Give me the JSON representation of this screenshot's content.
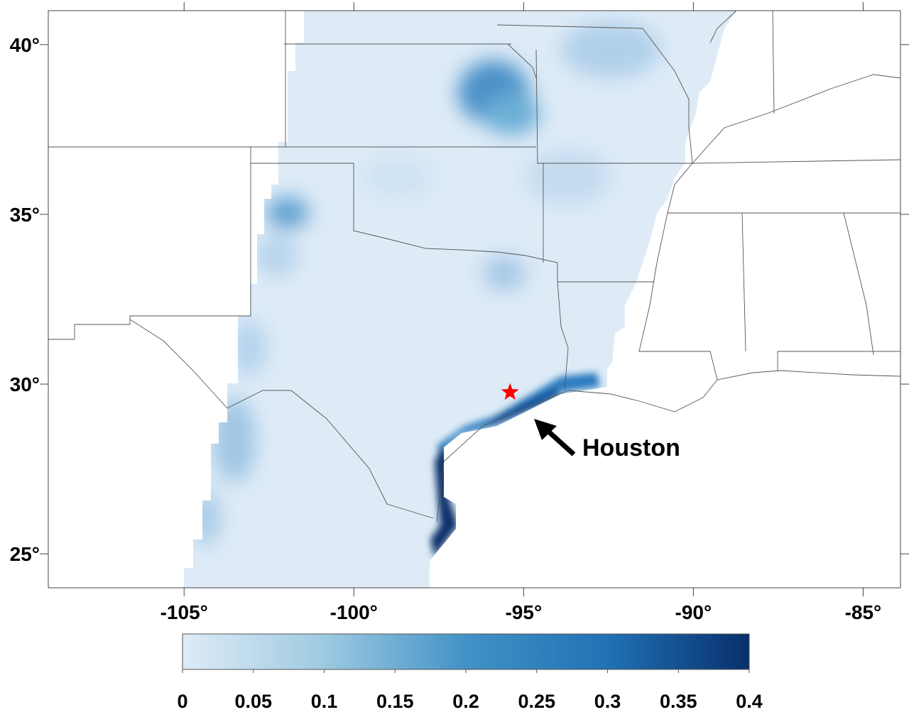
{
  "map": {
    "type": "map",
    "xlim": [
      -109,
      -83.9
    ],
    "ylim": [
      24,
      41
    ],
    "xticks": [
      {
        "value": -105,
        "label": "-105°"
      },
      {
        "value": -100,
        "label": "-100°"
      },
      {
        "value": -95,
        "label": "-95°"
      },
      {
        "value": -90,
        "label": "-90°"
      },
      {
        "value": -85,
        "label": "-85°"
      }
    ],
    "yticks": [
      {
        "value": 25,
        "label": "25°"
      },
      {
        "value": 30,
        "label": "30°"
      },
      {
        "value": 35,
        "label": "35°"
      },
      {
        "value": 40,
        "label": "40°"
      }
    ],
    "marker": {
      "lon": -95.4,
      "lat": 29.76,
      "color": "#ff0000"
    },
    "annotation": "Houston",
    "colorbar": {
      "colormap": [
        "#deebf7",
        "#9ecae1",
        "#4292c6",
        "#2171b5",
        "#08306b"
      ],
      "lim": [
        0,
        0.4
      ],
      "ticks": [
        0,
        0.05,
        0.1,
        0.15,
        0.2,
        0.25,
        0.3,
        0.35,
        0.4
      ]
    }
  }
}
